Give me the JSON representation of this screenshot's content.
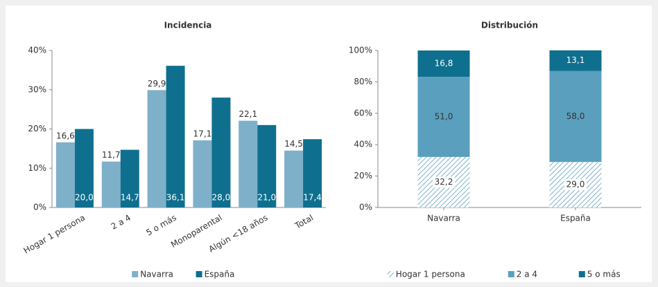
{
  "chart_data": [
    {
      "type": "bar",
      "title": "Incidencia",
      "categories": [
        "Hogar 1 persona",
        "2 a 4",
        "5 o más",
        "Monoparental",
        "Algún <18 años",
        "Total"
      ],
      "series": [
        {
          "name": "Navarra",
          "color": "#7fb0c9",
          "values": [
            16.6,
            11.7,
            29.9,
            17.1,
            22.1,
            14.5
          ],
          "value_labels": [
            "16,6",
            "11,7",
            "29,9",
            "17,1",
            "22,1",
            "14,5"
          ]
        },
        {
          "name": "España",
          "color": "#0f6f8e",
          "values": [
            20.0,
            14.7,
            36.1,
            28.0,
            21.0,
            17.4
          ],
          "value_labels": [
            "20,0",
            "14,7",
            "36,1",
            "28,0",
            "21,0",
            "17,4"
          ]
        }
      ],
      "ylim": [
        0,
        40
      ],
      "yticks": [
        {
          "value": 0,
          "label": "0%"
        },
        {
          "value": 10,
          "label": "10%"
        },
        {
          "value": 20,
          "label": "20%"
        },
        {
          "value": 30,
          "label": "30%"
        },
        {
          "value": 40,
          "label": "40%"
        }
      ],
      "legend": "bottom"
    },
    {
      "type": "stacked-bar",
      "title": "Distribución",
      "categories": [
        "Navarra",
        "España"
      ],
      "series": [
        {
          "name": "Hogar 1 persona",
          "color": "#5a9fbd",
          "hatch": true,
          "values": [
            32.2,
            29.0
          ],
          "value_labels": [
            "32,2",
            "29,0"
          ]
        },
        {
          "name": "2 a 4",
          "color": "#5a9fbd",
          "values": [
            51.0,
            58.0
          ],
          "value_labels": [
            "51,0",
            "58,0"
          ]
        },
        {
          "name": "5 o más",
          "color": "#0f6f8e",
          "values": [
            16.8,
            13.1
          ],
          "value_labels": [
            "16,8",
            "13,1"
          ]
        }
      ],
      "ylim": [
        0,
        100
      ],
      "yticks": [
        {
          "value": 0,
          "label": "0%"
        },
        {
          "value": 20,
          "label": "20%"
        },
        {
          "value": 40,
          "label": "40%"
        },
        {
          "value": 60,
          "label": "60%"
        },
        {
          "value": 80,
          "label": "80%"
        },
        {
          "value": 100,
          "label": "100%"
        }
      ],
      "legend": "bottom"
    }
  ]
}
